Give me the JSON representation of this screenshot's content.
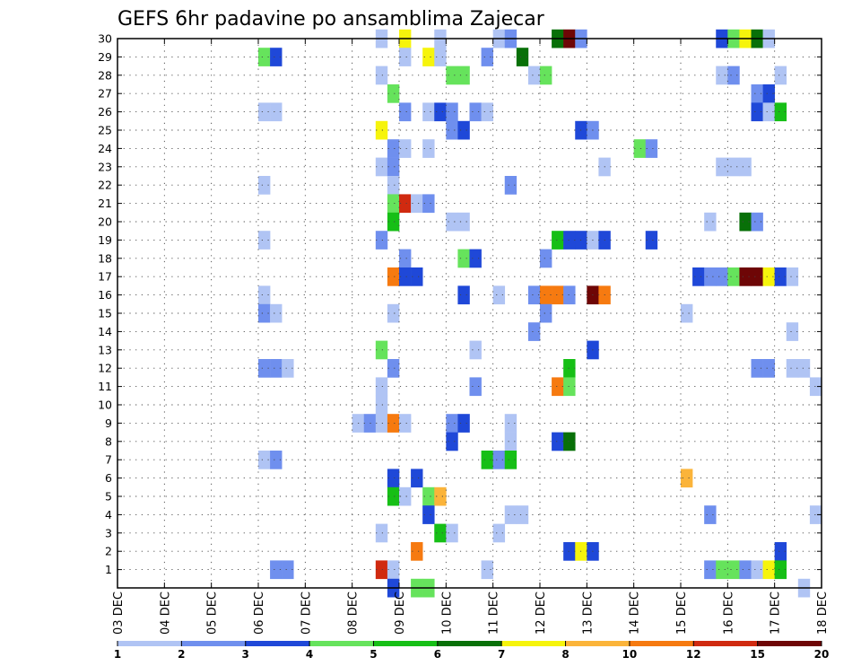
{
  "chart_data": {
    "type": "heatmap",
    "title": "GEFS 6hr padavine po ansamblima Zajecar",
    "x_tick_labels": [
      "03 DEC",
      "04 DEC",
      "05 DEC",
      "06 DEC",
      "07 DEC",
      "08 DEC",
      "09 DEC",
      "10 DEC",
      "11 DEC",
      "12 DEC",
      "13 DEC",
      "14 DEC",
      "15 DEC",
      "16 DEC",
      "17 DEC",
      "18 DEC"
    ],
    "y_tick_labels": [
      "1",
      "2",
      "3",
      "4",
      "5",
      "6",
      "7",
      "8",
      "9",
      "10",
      "11",
      "12",
      "13",
      "14",
      "15",
      "16",
      "17",
      "18",
      "19",
      "20",
      "21",
      "22",
      "23",
      "24",
      "25",
      "26",
      "27",
      "28",
      "29",
      "30"
    ],
    "y_range": [
      0,
      30
    ],
    "x_step_days": 0.25,
    "x_range_days": [
      0,
      15
    ],
    "grid": true,
    "colorbar": {
      "levels": [
        "1",
        "2",
        "3",
        "4",
        "5",
        "6",
        "7",
        "8",
        "10",
        "12",
        "15",
        "20"
      ],
      "colors": [
        "#b0c4f4",
        "#6f8fee",
        "#1f48d8",
        "#66e35c",
        "#16bf16",
        "#087008",
        "#f6f40c",
        "#fbb43a",
        "#f67a10",
        "#d02a10",
        "#6e0606"
      ]
    },
    "cells": [
      {
        "m": 30,
        "x": [
          [
            5.5,
            0
          ],
          [
            6.0,
            6
          ],
          [
            6.75,
            0
          ],
          [
            8.0,
            0
          ],
          [
            8.25,
            1
          ],
          [
            9.25,
            5
          ],
          [
            9.5,
            10
          ],
          [
            9.75,
            1
          ],
          [
            12.75,
            2
          ],
          [
            13.0,
            3
          ],
          [
            13.25,
            6
          ],
          [
            13.5,
            5
          ],
          [
            13.75,
            0
          ]
        ]
      },
      {
        "m": 29,
        "x": [
          [
            3.0,
            3
          ],
          [
            3.25,
            2
          ],
          [
            6.0,
            0
          ],
          [
            6.5,
            6
          ],
          [
            6.75,
            0
          ],
          [
            7.75,
            1
          ],
          [
            8.5,
            5
          ]
        ]
      },
      {
        "m": 28,
        "x": [
          [
            5.5,
            0
          ],
          [
            7.0,
            3
          ],
          [
            7.25,
            3
          ],
          [
            8.75,
            0
          ],
          [
            9.0,
            3
          ],
          [
            12.75,
            0
          ],
          [
            13.0,
            1
          ],
          [
            14.0,
            0
          ]
        ]
      },
      {
        "m": 27,
        "x": [
          [
            5.75,
            3
          ],
          [
            13.5,
            1
          ],
          [
            13.75,
            2
          ]
        ]
      },
      {
        "m": 26,
        "x": [
          [
            3.0,
            0
          ],
          [
            3.25,
            0
          ],
          [
            6.0,
            1
          ],
          [
            6.5,
            0
          ],
          [
            6.75,
            2
          ],
          [
            7.0,
            1
          ],
          [
            7.5,
            1
          ],
          [
            7.75,
            0
          ],
          [
            13.5,
            2
          ],
          [
            13.75,
            0
          ],
          [
            14.0,
            4
          ]
        ]
      },
      {
        "m": 25,
        "x": [
          [
            5.5,
            6
          ],
          [
            7.0,
            1
          ],
          [
            7.25,
            2
          ],
          [
            9.75,
            2
          ],
          [
            10.0,
            1
          ]
        ]
      },
      {
        "m": 24,
        "x": [
          [
            5.75,
            1
          ],
          [
            6.0,
            0
          ],
          [
            6.5,
            0
          ],
          [
            11.0,
            3
          ],
          [
            11.25,
            1
          ]
        ]
      },
      {
        "m": 23,
        "x": [
          [
            5.5,
            0
          ],
          [
            5.75,
            1
          ],
          [
            10.25,
            0
          ],
          [
            12.75,
            0
          ],
          [
            13.0,
            0
          ],
          [
            13.25,
            0
          ]
        ]
      },
      {
        "m": 22,
        "x": [
          [
            3.0,
            0
          ],
          [
            5.75,
            0
          ],
          [
            8.25,
            1
          ]
        ]
      },
      {
        "m": 21,
        "x": [
          [
            5.75,
            3
          ],
          [
            6.0,
            9
          ],
          [
            6.25,
            0
          ],
          [
            6.5,
            1
          ]
        ]
      },
      {
        "m": 20,
        "x": [
          [
            5.75,
            4
          ],
          [
            7.0,
            0
          ],
          [
            7.25,
            0
          ],
          [
            12.5,
            0
          ],
          [
            13.25,
            5
          ],
          [
            13.5,
            1
          ]
        ]
      },
      {
        "m": 19,
        "x": [
          [
            3.0,
            0
          ],
          [
            5.5,
            1
          ],
          [
            9.25,
            4
          ],
          [
            9.5,
            2
          ],
          [
            9.75,
            2
          ],
          [
            10.0,
            0
          ],
          [
            10.25,
            2
          ],
          [
            11.25,
            2
          ]
        ]
      },
      {
        "m": 18,
        "x": [
          [
            6.0,
            1
          ],
          [
            7.25,
            3
          ],
          [
            7.5,
            2
          ],
          [
            9.0,
            1
          ]
        ]
      },
      {
        "m": 17,
        "x": [
          [
            5.75,
            8
          ],
          [
            6.0,
            2
          ],
          [
            6.25,
            2
          ],
          [
            12.25,
            2
          ],
          [
            12.5,
            1
          ],
          [
            12.75,
            1
          ],
          [
            13.0,
            3
          ],
          [
            13.25,
            10
          ],
          [
            13.5,
            10
          ],
          [
            13.75,
            6
          ],
          [
            14.0,
            2
          ],
          [
            14.25,
            0
          ]
        ]
      },
      {
        "m": 16,
        "x": [
          [
            3.0,
            0
          ],
          [
            7.25,
            2
          ],
          [
            8.0,
            0
          ],
          [
            8.75,
            1
          ],
          [
            9.0,
            8
          ],
          [
            9.25,
            8
          ],
          [
            9.5,
            1
          ],
          [
            10.0,
            10
          ],
          [
            10.25,
            8
          ]
        ]
      },
      {
        "m": 15,
        "x": [
          [
            3.0,
            1
          ],
          [
            3.25,
            0
          ],
          [
            5.75,
            0
          ],
          [
            9.0,
            1
          ],
          [
            12.0,
            0
          ]
        ]
      },
      {
        "m": 14,
        "x": [
          [
            8.75,
            1
          ],
          [
            14.25,
            0
          ]
        ]
      },
      {
        "m": 13,
        "x": [
          [
            5.5,
            3
          ],
          [
            7.5,
            0
          ],
          [
            10.0,
            2
          ]
        ]
      },
      {
        "m": 12,
        "x": [
          [
            3.0,
            1
          ],
          [
            3.25,
            1
          ],
          [
            3.5,
            0
          ],
          [
            5.75,
            1
          ],
          [
            9.5,
            4
          ],
          [
            13.5,
            1
          ],
          [
            13.75,
            1
          ],
          [
            14.25,
            0
          ],
          [
            14.5,
            0
          ]
        ]
      },
      {
        "m": 11,
        "x": [
          [
            5.5,
            0
          ],
          [
            7.5,
            1
          ],
          [
            9.25,
            8
          ],
          [
            9.5,
            3
          ],
          [
            14.75,
            0
          ]
        ]
      },
      {
        "m": 10,
        "x": [
          [
            5.5,
            0
          ]
        ]
      },
      {
        "m": 9,
        "x": [
          [
            5.0,
            0
          ],
          [
            5.25,
            1
          ],
          [
            5.5,
            0
          ],
          [
            5.75,
            8
          ],
          [
            6.0,
            0
          ],
          [
            7.0,
            1
          ],
          [
            7.25,
            2
          ],
          [
            8.25,
            0
          ]
        ]
      },
      {
        "m": 8,
        "x": [
          [
            7.0,
            2
          ],
          [
            8.25,
            0
          ],
          [
            9.25,
            2
          ],
          [
            9.5,
            5
          ]
        ]
      },
      {
        "m": 7,
        "x": [
          [
            3.0,
            0
          ],
          [
            3.25,
            1
          ],
          [
            7.75,
            4
          ],
          [
            8.0,
            1
          ],
          [
            8.25,
            4
          ]
        ]
      },
      {
        "m": 6,
        "x": [
          [
            5.75,
            2
          ],
          [
            6.25,
            2
          ],
          [
            12.0,
            7
          ]
        ]
      },
      {
        "m": 5,
        "x": [
          [
            5.75,
            4
          ],
          [
            6.0,
            0
          ],
          [
            6.5,
            3
          ],
          [
            6.75,
            7
          ]
        ]
      },
      {
        "m": 4,
        "x": [
          [
            6.5,
            2
          ],
          [
            8.25,
            0
          ],
          [
            8.5,
            0
          ],
          [
            12.5,
            1
          ],
          [
            14.75,
            0
          ]
        ]
      },
      {
        "m": 3,
        "x": [
          [
            5.5,
            0
          ],
          [
            6.75,
            4
          ],
          [
            7.0,
            0
          ],
          [
            8.0,
            0
          ]
        ]
      },
      {
        "m": 2,
        "x": [
          [
            6.25,
            8
          ],
          [
            9.5,
            2
          ],
          [
            9.75,
            6
          ],
          [
            10.0,
            2
          ],
          [
            14.0,
            2
          ]
        ]
      },
      {
        "m": 1,
        "x": [
          [
            3.25,
            1
          ],
          [
            3.5,
            1
          ],
          [
            5.5,
            9
          ],
          [
            5.75,
            0
          ],
          [
            7.75,
            0
          ],
          [
            12.5,
            1
          ],
          [
            12.75,
            3
          ],
          [
            13.0,
            3
          ],
          [
            13.25,
            1
          ],
          [
            13.5,
            0
          ],
          [
            13.75,
            6
          ],
          [
            14.0,
            4
          ]
        ]
      },
      {
        "m": 0,
        "x": [
          [
            5.75,
            2
          ],
          [
            6.25,
            3
          ],
          [
            6.5,
            3
          ],
          [
            14.5,
            0
          ]
        ]
      }
    ]
  }
}
